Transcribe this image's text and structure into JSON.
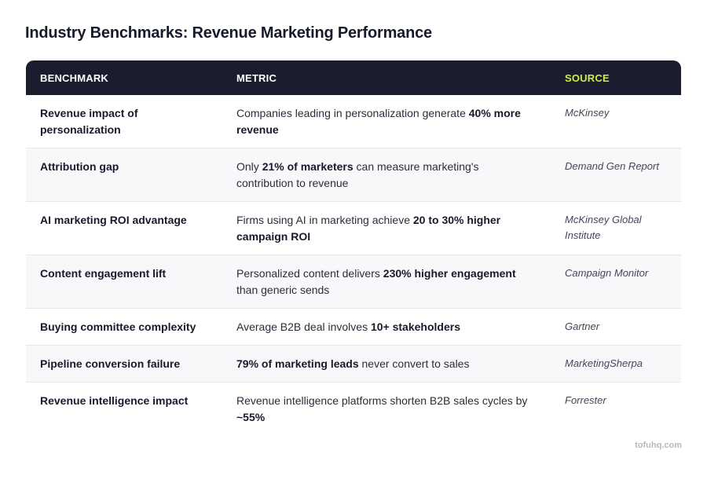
{
  "title": "Industry Benchmarks: Revenue Marketing Performance",
  "headers": {
    "benchmark": "BENCHMARK",
    "metric": "METRIC",
    "source": "SOURCE"
  },
  "rows": [
    {
      "benchmark": "Revenue impact of personalization",
      "metric": [
        {
          "text": "Companies leading in personalization generate ",
          "bold": false
        },
        {
          "text": "40% more revenue",
          "bold": true
        }
      ],
      "source": "McKinsey"
    },
    {
      "benchmark": "Attribution gap",
      "metric": [
        {
          "text": "Only ",
          "bold": false
        },
        {
          "text": "21% of marketers",
          "bold": true
        },
        {
          "text": " can measure marketing's contribution to revenue",
          "bold": false
        }
      ],
      "source": "Demand Gen Report"
    },
    {
      "benchmark": "AI marketing ROI advantage",
      "metric": [
        {
          "text": "Firms using AI in marketing achieve ",
          "bold": false
        },
        {
          "text": "20 to 30% higher campaign ROI",
          "bold": true
        }
      ],
      "source": "McKinsey Global Institute"
    },
    {
      "benchmark": "Content engagement lift",
      "metric": [
        {
          "text": "Personalized content delivers ",
          "bold": false
        },
        {
          "text": "230% higher engagement",
          "bold": true
        },
        {
          "text": " than generic sends",
          "bold": false
        }
      ],
      "source": "Campaign Monitor"
    },
    {
      "benchmark": "Buying committee complexity",
      "metric": [
        {
          "text": "Average B2B deal involves ",
          "bold": false
        },
        {
          "text": "10+ stakeholders",
          "bold": true
        }
      ],
      "source": "Gartner"
    },
    {
      "benchmark": "Pipeline conversion failure",
      "metric": [
        {
          "text": "79% of marketing leads",
          "bold": true
        },
        {
          "text": " never convert to sales",
          "bold": false
        }
      ],
      "source": "MarketingSherpa"
    },
    {
      "benchmark": "Revenue intelligence impact",
      "metric": [
        {
          "text": "Revenue intelligence platforms shorten B2B sales cycles by ",
          "bold": false
        },
        {
          "text": "~55%",
          "bold": true
        }
      ],
      "source": "Forrester"
    }
  ],
  "footer": "tofuhq.com",
  "colors": {
    "header_bg": "#1b1d2f",
    "source_accent": "#c8f03c"
  }
}
